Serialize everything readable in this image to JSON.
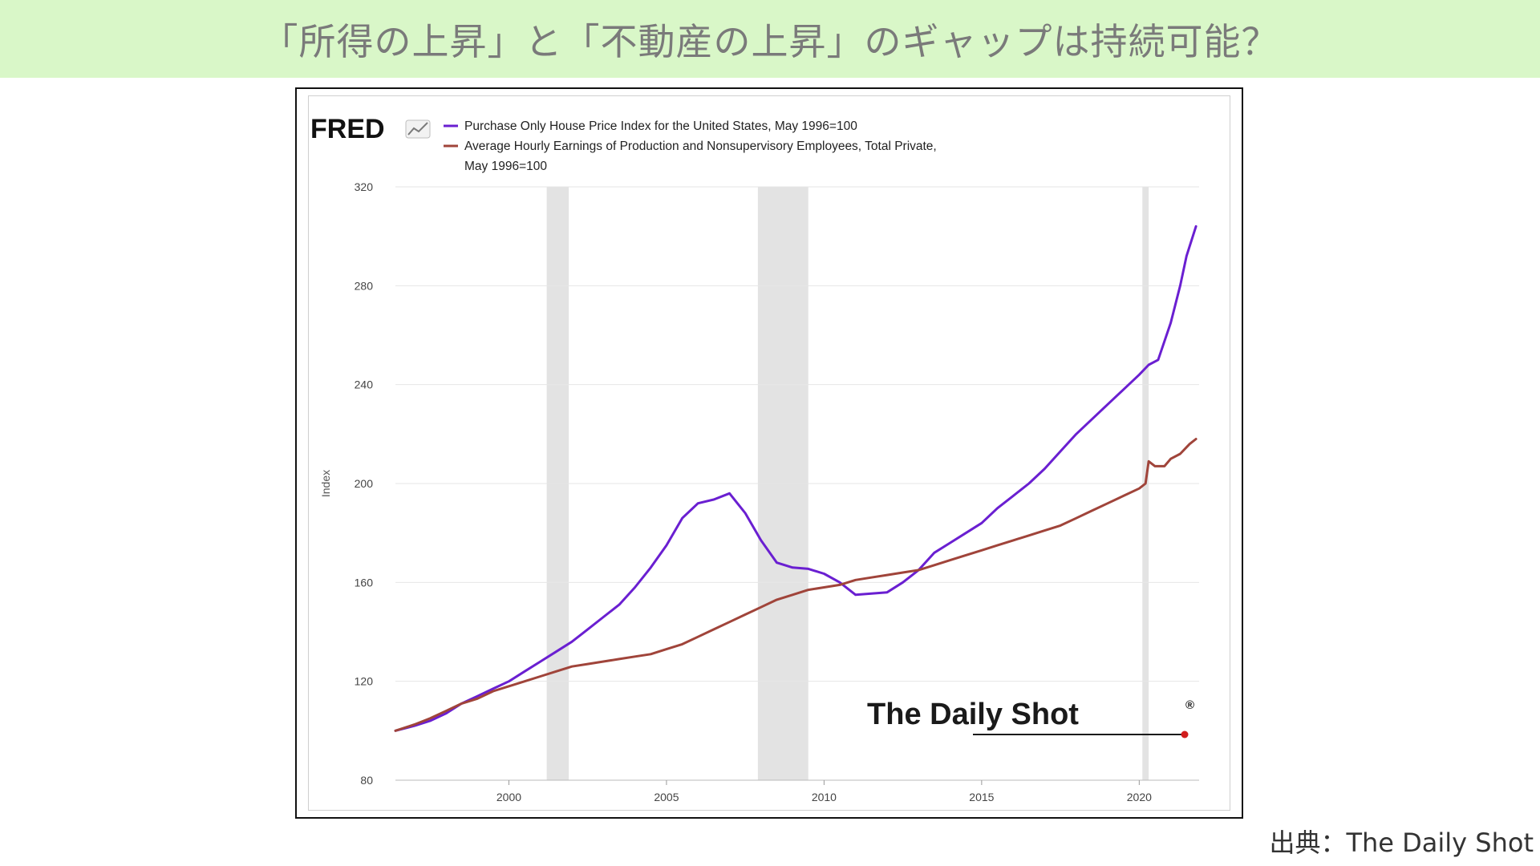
{
  "slide": {
    "title": "「所得の上昇」と「不動産の上昇」のギャップは持続可能？",
    "source": "出典：The Daily Shot"
  },
  "brand": {
    "fred_logo_text": "FRED",
    "watermark_text": "The Daily Shot",
    "watermark_mark": "®"
  },
  "colors": {
    "banner_bg": "#d9f7c8",
    "house_price": "#6a1fd1",
    "earnings": "#a0443a",
    "recession": "#e3e3e3",
    "grid": "#e6e6e6",
    "axis_text": "#444444"
  },
  "chart_data": {
    "type": "line",
    "title": "",
    "ylabel": "Index",
    "xlabel": "",
    "ylim": [
      80,
      320
    ],
    "xlim": [
      1996.4,
      2021.9
    ],
    "x_ticks": [
      2000,
      2005,
      2010,
      2015,
      2020
    ],
    "y_ticks": [
      80,
      120,
      160,
      200,
      240,
      280,
      320
    ],
    "grid": true,
    "legend_position": "top-left",
    "recessions": [
      {
        "start": 2001.2,
        "end": 2001.9
      },
      {
        "start": 2007.9,
        "end": 2009.5
      },
      {
        "start": 2020.1,
        "end": 2020.3
      }
    ],
    "series": [
      {
        "name": "Purchase Only House Price Index for the United States, May 1996=100",
        "legend_lines": [
          "Purchase Only House Price Index for the United States, May 1996=100"
        ],
        "color": "#6a1fd1",
        "points": [
          [
            1996.4,
            100
          ],
          [
            1997,
            102
          ],
          [
            1997.5,
            104
          ],
          [
            1998,
            107
          ],
          [
            1998.5,
            111
          ],
          [
            1999,
            114
          ],
          [
            1999.5,
            117
          ],
          [
            2000,
            120
          ],
          [
            2000.5,
            124
          ],
          [
            2001,
            128
          ],
          [
            2001.5,
            132
          ],
          [
            2002,
            136
          ],
          [
            2002.5,
            141
          ],
          [
            2003,
            146
          ],
          [
            2003.5,
            151
          ],
          [
            2004,
            158
          ],
          [
            2004.5,
            166
          ],
          [
            2005,
            175
          ],
          [
            2005.5,
            186
          ],
          [
            2006,
            192
          ],
          [
            2006.5,
            193.5
          ],
          [
            2007,
            196
          ],
          [
            2007.5,
            188
          ],
          [
            2008,
            177
          ],
          [
            2008.5,
            168
          ],
          [
            2009,
            166
          ],
          [
            2009.5,
            165.5
          ],
          [
            2010,
            163.5
          ],
          [
            2010.5,
            160
          ],
          [
            2011,
            155
          ],
          [
            2011.5,
            155.5
          ],
          [
            2012,
            156
          ],
          [
            2012.5,
            160
          ],
          [
            2013,
            165
          ],
          [
            2013.5,
            172
          ],
          [
            2014,
            176
          ],
          [
            2014.5,
            180
          ],
          [
            2015,
            184
          ],
          [
            2015.5,
            190
          ],
          [
            2016,
            195
          ],
          [
            2016.5,
            200
          ],
          [
            2017,
            206
          ],
          [
            2017.5,
            213
          ],
          [
            2018,
            220
          ],
          [
            2018.5,
            226
          ],
          [
            2019,
            232
          ],
          [
            2019.5,
            238
          ],
          [
            2020,
            244
          ],
          [
            2020.3,
            248
          ],
          [
            2020.6,
            250
          ],
          [
            2021,
            265
          ],
          [
            2021.3,
            280
          ],
          [
            2021.5,
            292
          ],
          [
            2021.8,
            304
          ]
        ]
      },
      {
        "name": "Average Hourly Earnings of Production and Nonsupervisory Employees, Total Private, May 1996=100",
        "legend_lines": [
          "Average Hourly Earnings of Production and Nonsupervisory Employees, Total Private,",
          "May 1996=100"
        ],
        "color": "#a0443a",
        "points": [
          [
            1996.4,
            100
          ],
          [
            1997,
            102.5
          ],
          [
            1997.5,
            105
          ],
          [
            1998,
            108
          ],
          [
            1998.5,
            111
          ],
          [
            1999,
            113
          ],
          [
            1999.5,
            116
          ],
          [
            2000,
            118
          ],
          [
            2000.5,
            120
          ],
          [
            2001,
            122
          ],
          [
            2001.5,
            124
          ],
          [
            2002,
            126
          ],
          [
            2002.5,
            127
          ],
          [
            2003,
            128
          ],
          [
            2003.5,
            129
          ],
          [
            2004,
            130
          ],
          [
            2004.5,
            131
          ],
          [
            2005,
            133
          ],
          [
            2005.5,
            135
          ],
          [
            2006,
            138
          ],
          [
            2006.5,
            141
          ],
          [
            2007,
            144
          ],
          [
            2007.5,
            147
          ],
          [
            2008,
            150
          ],
          [
            2008.5,
            153
          ],
          [
            2009,
            155
          ],
          [
            2009.5,
            157
          ],
          [
            2010,
            158
          ],
          [
            2010.5,
            159
          ],
          [
            2011,
            161
          ],
          [
            2011.5,
            162
          ],
          [
            2012,
            163
          ],
          [
            2012.5,
            164
          ],
          [
            2013,
            165
          ],
          [
            2013.5,
            167
          ],
          [
            2014,
            169
          ],
          [
            2014.5,
            171
          ],
          [
            2015,
            173
          ],
          [
            2015.5,
            175
          ],
          [
            2016,
            177
          ],
          [
            2016.5,
            179
          ],
          [
            2017,
            181
          ],
          [
            2017.5,
            183
          ],
          [
            2018,
            186
          ],
          [
            2018.5,
            189
          ],
          [
            2019,
            192
          ],
          [
            2019.5,
            195
          ],
          [
            2020,
            198
          ],
          [
            2020.2,
            200
          ],
          [
            2020.3,
            209
          ],
          [
            2020.5,
            207
          ],
          [
            2020.8,
            207
          ],
          [
            2021,
            210
          ],
          [
            2021.3,
            212
          ],
          [
            2021.6,
            216
          ],
          [
            2021.8,
            218
          ]
        ]
      }
    ]
  }
}
